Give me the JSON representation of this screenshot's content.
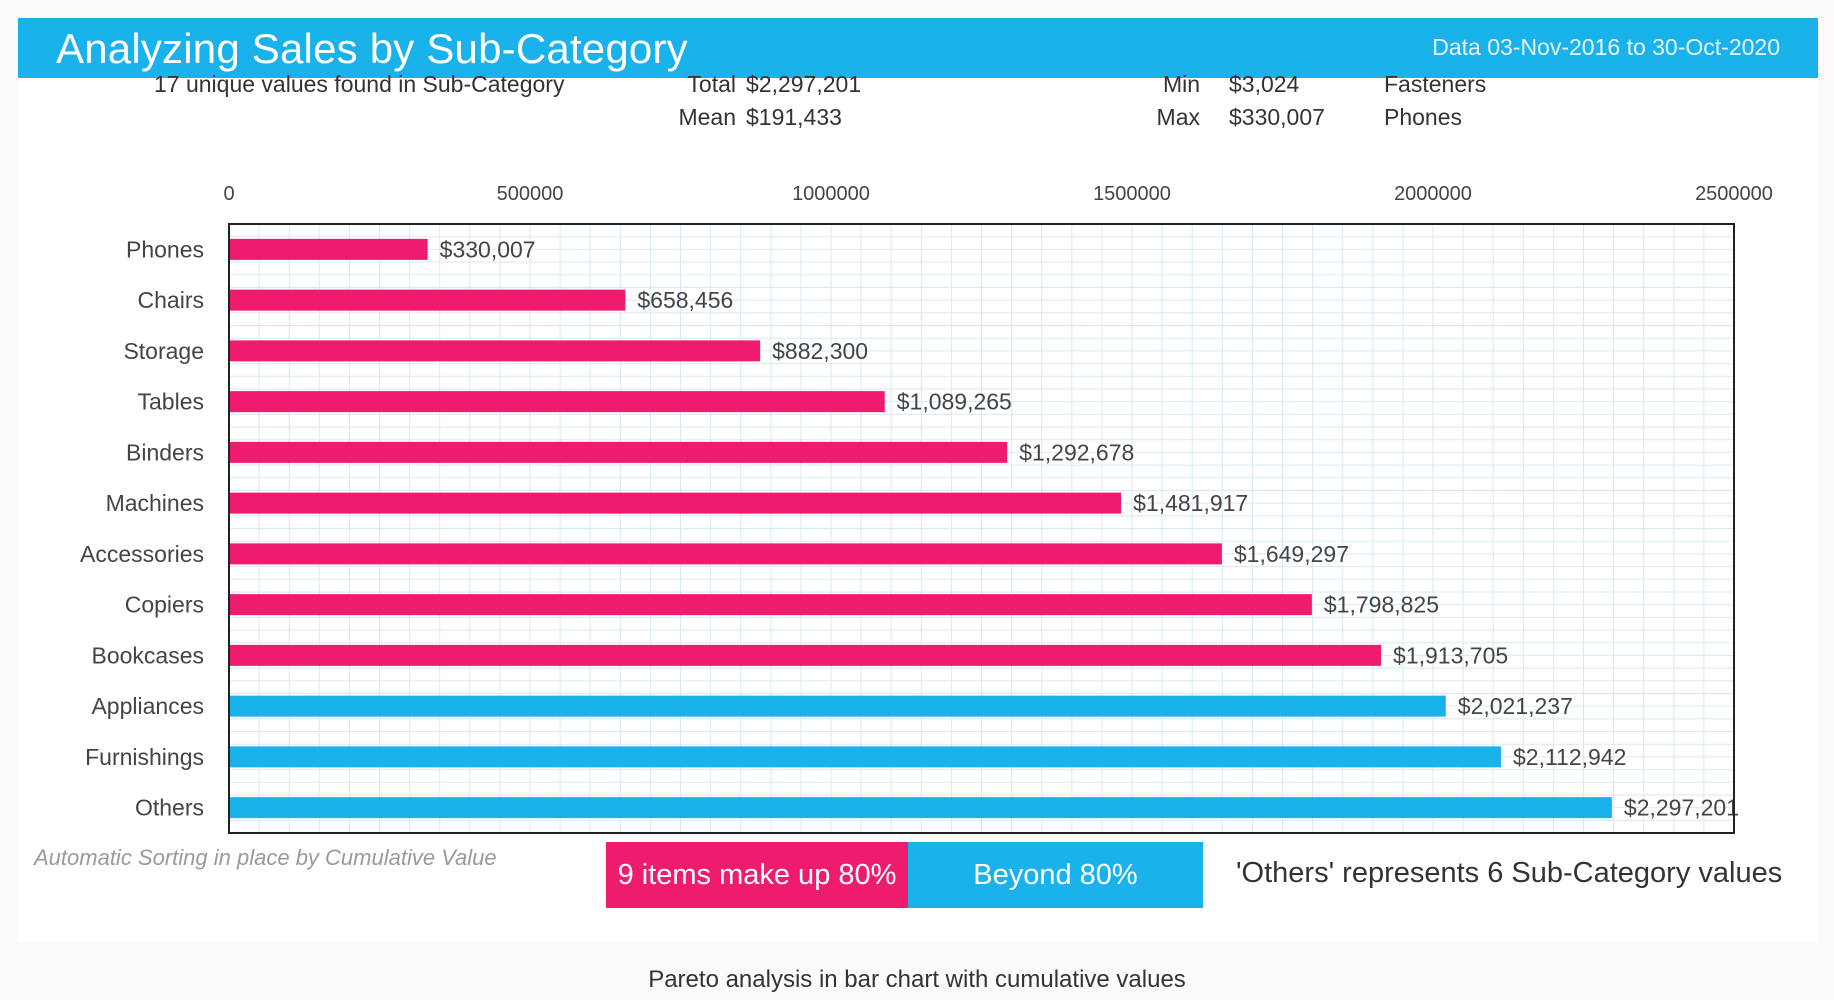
{
  "header": {
    "title": "Analyzing Sales by Sub-Category",
    "date_range": "Data 03-Nov-2016 to 30-Oct-2020"
  },
  "stats": {
    "unique_values": "17 unique values found in Sub-Category",
    "total_label": "Total",
    "total_value": "$2,297,201",
    "mean_label": "Mean",
    "mean_value": "$191,433",
    "min_label": "Min",
    "min_value": "$3,024",
    "min_item": "Fasteners",
    "max_label": "Max",
    "max_value": "$330,007",
    "max_item": "Phones"
  },
  "chart_data": {
    "type": "bar",
    "orientation": "horizontal",
    "categories": [
      "Phones",
      "Chairs",
      "Storage",
      "Tables",
      "Binders",
      "Machines",
      "Accessories",
      "Copiers",
      "Bookcases",
      "Appliances",
      "Furnishings",
      "Others"
    ],
    "values": [
      330007,
      658456,
      882300,
      1089265,
      1292678,
      1481917,
      1649297,
      1798825,
      1913705,
      2021237,
      2112942,
      2297201
    ],
    "value_labels": [
      "$330,007",
      "$658,456",
      "$882,300",
      "$1,089,265",
      "$1,292,678",
      "$1,481,917",
      "$1,649,297",
      "$1,798,825",
      "$1,913,705",
      "$2,021,237",
      "$2,112,942",
      "$2,297,201"
    ],
    "groups": [
      "within80",
      "within80",
      "within80",
      "within80",
      "within80",
      "within80",
      "within80",
      "within80",
      "within80",
      "beyond80",
      "beyond80",
      "beyond80"
    ],
    "colors": {
      "within80": "#ee1b6f",
      "beyond80": "#1ab2ea",
      "grid": "#d8e9f6"
    },
    "xlim": [
      0,
      2500000
    ],
    "x_ticks": [
      0,
      500000,
      1000000,
      1500000,
      2000000,
      2500000
    ],
    "x_tick_labels": [
      "0",
      "500000",
      "1000000",
      "1500000",
      "2000000",
      "2500000"
    ],
    "grid": true,
    "title": "",
    "xlabel": "",
    "ylabel": ""
  },
  "footer": {
    "sort_note": "Automatic Sorting in place by Cumulative Value",
    "legend_within": "9 items make up 80%",
    "legend_beyond": "Beyond 80%",
    "others_note": "'Others' represents 6 Sub-Category values",
    "caption": "Pareto analysis in bar chart with cumulative values"
  }
}
